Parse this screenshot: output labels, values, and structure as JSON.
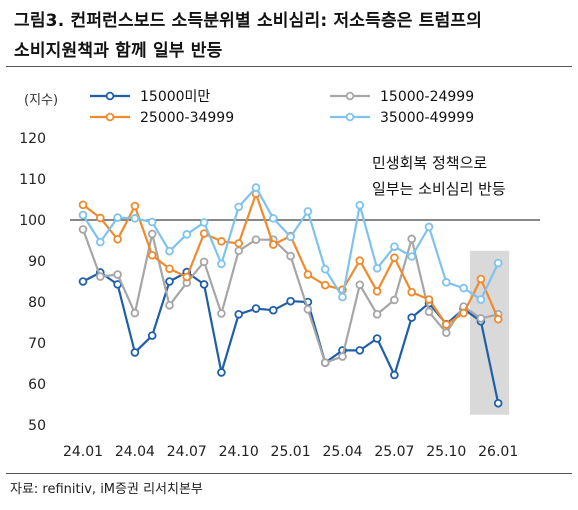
{
  "figure": {
    "title_line1": "그림3.  컨퍼런스보드  소득분위별  소비심리:  저소득층은  트럼프의",
    "title_line2": "소비지원책과  함께  일부  반등",
    "source": "자료: refinitiv, iM증권 리서치본부"
  },
  "chart_data": {
    "type": "line",
    "ylabel": "(지수)",
    "ylim": [
      50,
      120
    ],
    "yticks": [
      50,
      60,
      70,
      80,
      90,
      100,
      110,
      120
    ],
    "reference_line": 100,
    "x_tick_labels": [
      "24.01",
      "24.04",
      "24.07",
      "24.10",
      "25.01",
      "25.04",
      "25.07",
      "25.10",
      "26.01"
    ],
    "x_tick_index": [
      0,
      3,
      6,
      9,
      12,
      15,
      18,
      21,
      24
    ],
    "x_count": 25,
    "annotation": [
      "민생회복 정책으로",
      "일부는 소비심리 반등"
    ],
    "highlight_range": [
      23,
      24
    ],
    "legend_placement": "top",
    "series": [
      {
        "name": "15000미만",
        "color": "#1f5fa8",
        "values": [
          85,
          87.2,
          84.3,
          67.7,
          71.8,
          85,
          87.3,
          84.3,
          62.8,
          77,
          78.4,
          78,
          80.2,
          80,
          65.2,
          68.2,
          68.2,
          71.1,
          62.2,
          76.2,
          79.7,
          74.6,
          78.3,
          75.3,
          55.3
        ]
      },
      {
        "name": "15000-24999",
        "color": "#a6a6a6",
        "values": [
          97.7,
          86.2,
          86.7,
          77.3,
          96.6,
          79.2,
          84.7,
          89.8,
          77.2,
          92.5,
          95.2,
          95.2,
          91.2,
          78.2,
          65.2,
          66.7,
          84.2,
          77,
          80.5,
          95.4,
          77.6,
          72.5,
          78.9,
          76,
          77
        ]
      },
      {
        "name": "25000-34999",
        "color": "#f08a2c",
        "values": [
          103.7,
          100.5,
          95.3,
          103.4,
          91.4,
          88.1,
          86.1,
          96.7,
          94.8,
          94.3,
          106.4,
          94,
          96.1,
          86.7,
          84.1,
          83,
          90.1,
          82.6,
          90.8,
          82.4,
          80.6,
          74.5,
          77.3,
          85.6,
          75.8
        ]
      },
      {
        "name": "35000-49999",
        "color": "#7ec3ee",
        "values": [
          101.2,
          94.6,
          100.6,
          100.4,
          99.5,
          92.4,
          96.5,
          99.4,
          89.3,
          103.2,
          107.9,
          100.4,
          95.9,
          102.1,
          88,
          81.2,
          103.6,
          88.2,
          93.5,
          91.1,
          98.3,
          84.8,
          83.4,
          80.6,
          89.5
        ]
      }
    ]
  }
}
